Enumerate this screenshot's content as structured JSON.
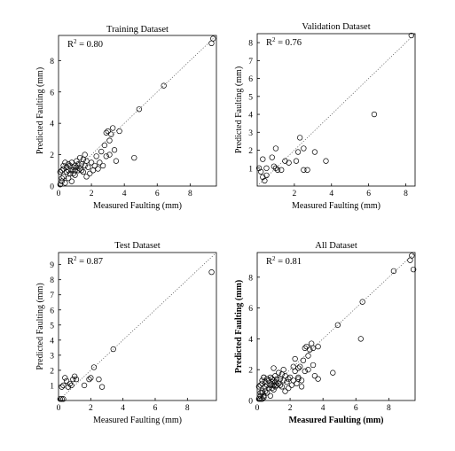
{
  "chart_data": [
    {
      "type": "scatter",
      "title": "Training Dataset",
      "xlabel": "Measured Faulting (mm)",
      "ylabel": "Predicted Faulting (mm)",
      "annotation": {
        "prefix": "R",
        "sup": "2",
        "value": " = 0.80"
      },
      "xlim": [
        0,
        9.6
      ],
      "ylim": [
        0,
        9.6
      ],
      "xticks": [
        0,
        2,
        4,
        6,
        8
      ],
      "yticks": [
        0,
        2,
        4,
        6,
        8
      ],
      "reference_line": "y = x (dotted)",
      "points": [
        [
          0.1,
          0.1
        ],
        [
          0.2,
          0.3
        ],
        [
          0.3,
          0.6
        ],
        [
          0.2,
          1.0
        ],
        [
          0.3,
          1.3
        ],
        [
          0.4,
          1.5
        ],
        [
          0.5,
          0.9
        ],
        [
          0.5,
          1.2
        ],
        [
          0.6,
          0.5
        ],
        [
          0.6,
          1.0
        ],
        [
          0.7,
          1.3
        ],
        [
          0.7,
          0.8
        ],
        [
          0.8,
          1.0
        ],
        [
          0.8,
          1.5
        ],
        [
          0.9,
          1.2
        ],
        [
          1.0,
          1.0
        ],
        [
          1.0,
          0.7
        ],
        [
          1.1,
          1.6
        ],
        [
          1.1,
          1.2
        ],
        [
          1.2,
          1.0
        ],
        [
          1.2,
          1.4
        ],
        [
          1.3,
          1.8
        ],
        [
          1.3,
          1.1
        ],
        [
          1.4,
          1.4
        ],
        [
          1.5,
          1.7
        ],
        [
          1.5,
          0.9
        ],
        [
          1.6,
          1.3
        ],
        [
          1.7,
          1.6
        ],
        [
          1.8,
          1.2
        ],
        [
          1.9,
          0.8
        ],
        [
          2.0,
          1.5
        ],
        [
          2.1,
          1.0
        ],
        [
          2.2,
          1.3
        ],
        [
          2.3,
          1.9
        ],
        [
          2.5,
          1.5
        ],
        [
          2.6,
          2.2
        ],
        [
          2.7,
          1.3
        ],
        [
          2.8,
          2.6
        ],
        [
          2.9,
          3.4
        ],
        [
          3.0,
          3.5
        ],
        [
          3.1,
          2.9
        ],
        [
          3.2,
          3.3
        ],
        [
          3.3,
          3.7
        ],
        [
          3.4,
          2.3
        ],
        [
          3.5,
          1.6
        ],
        [
          3.7,
          3.5
        ],
        [
          3.1,
          2.0
        ],
        [
          2.9,
          1.9
        ],
        [
          4.6,
          1.8
        ],
        [
          4.9,
          4.9
        ],
        [
          6.4,
          6.4
        ],
        [
          9.3,
          9.1
        ],
        [
          9.4,
          9.4
        ],
        [
          0.1,
          0.9
        ],
        [
          0.2,
          0.5
        ],
        [
          0.4,
          0.2
        ],
        [
          0.9,
          0.8
        ],
        [
          1.4,
          1.0
        ],
        [
          1.7,
          0.6
        ],
        [
          0.3,
          1.1
        ],
        [
          0.6,
          1.4
        ],
        [
          1.0,
          1.3
        ],
        [
          1.6,
          2.0
        ],
        [
          2.4,
          1.1
        ],
        [
          0.8,
          0.3
        ]
      ]
    },
    {
      "type": "scatter",
      "title": "Validation Dataset",
      "xlabel": "Measured Faulting (mm)",
      "ylabel": "Predicted Faulting (mm)",
      "annotation": {
        "prefix": "R",
        "sup": "2",
        "value": " = 0.76"
      },
      "xlim": [
        0,
        8.5
      ],
      "ylim": [
        0,
        8.5
      ],
      "xticks": [
        2,
        4,
        6,
        8
      ],
      "yticks": [
        1,
        2,
        3,
        4,
        5,
        6,
        7,
        8
      ],
      "reference_line": "y = x (dotted)",
      "points": [
        [
          0.1,
          1.0
        ],
        [
          0.2,
          0.8
        ],
        [
          0.3,
          0.5
        ],
        [
          0.3,
          1.5
        ],
        [
          0.4,
          0.3
        ],
        [
          0.5,
          0.6
        ],
        [
          0.5,
          1.0
        ],
        [
          0.8,
          1.6
        ],
        [
          0.9,
          1.1
        ],
        [
          1.0,
          1.0
        ],
        [
          1.0,
          2.1
        ],
        [
          1.1,
          0.9
        ],
        [
          1.3,
          0.9
        ],
        [
          1.5,
          1.4
        ],
        [
          1.7,
          1.3
        ],
        [
          2.1,
          1.4
        ],
        [
          2.2,
          1.9
        ],
        [
          2.3,
          2.7
        ],
        [
          2.5,
          2.1
        ],
        [
          2.5,
          0.9
        ],
        [
          2.7,
          0.9
        ],
        [
          3.1,
          1.9
        ],
        [
          3.7,
          1.4
        ],
        [
          6.3,
          4.0
        ],
        [
          8.3,
          8.4
        ]
      ]
    },
    {
      "type": "scatter",
      "title": "Test Dataset",
      "xlabel": "Measured Faulting (mm)",
      "ylabel": "Predicted Faulting (mm)",
      "annotation": {
        "prefix": "R",
        "sup": "2",
        "value": " = 0.87"
      },
      "xlim": [
        0,
        9.8
      ],
      "ylim": [
        0,
        9.8
      ],
      "xticks": [
        0,
        2,
        4,
        6,
        8
      ],
      "yticks": [
        1,
        2,
        3,
        4,
        5,
        6,
        7,
        8,
        9
      ],
      "reference_line": "y = x (dotted)",
      "points": [
        [
          0.1,
          0.1
        ],
        [
          0.2,
          0.1
        ],
        [
          0.3,
          0.1
        ],
        [
          0.2,
          0.9
        ],
        [
          0.3,
          1.0
        ],
        [
          0.4,
          1.5
        ],
        [
          0.5,
          1.3
        ],
        [
          0.6,
          0.9
        ],
        [
          0.7,
          1.1
        ],
        [
          0.8,
          1.0
        ],
        [
          0.9,
          1.4
        ],
        [
          1.0,
          1.6
        ],
        [
          1.1,
          1.4
        ],
        [
          1.6,
          1.0
        ],
        [
          1.9,
          1.4
        ],
        [
          2.0,
          1.5
        ],
        [
          2.2,
          2.2
        ],
        [
          2.5,
          1.4
        ],
        [
          2.7,
          0.9
        ],
        [
          3.4,
          3.4
        ],
        [
          9.5,
          8.5
        ]
      ]
    },
    {
      "type": "scatter",
      "title": "All Dataset",
      "xlabel": "Measured Faulting (mm)",
      "ylabel": "Predicted Faulting (mm)",
      "annotation": {
        "prefix": "R",
        "sup": "2",
        "value": " = 0.81"
      },
      "xlim": [
        0,
        9.6
      ],
      "ylim": [
        0,
        9.6
      ],
      "xticks": [
        0,
        2,
        4,
        6,
        8
      ],
      "yticks": [
        0,
        2,
        4,
        6,
        8
      ],
      "reference_line": "y = x (dotted)",
      "points": [
        [
          0.1,
          0.1
        ],
        [
          0.2,
          0.3
        ],
        [
          0.3,
          0.6
        ],
        [
          0.2,
          1.0
        ],
        [
          0.3,
          1.3
        ],
        [
          0.4,
          1.5
        ],
        [
          0.5,
          0.9
        ],
        [
          0.5,
          1.2
        ],
        [
          0.6,
          0.5
        ],
        [
          0.6,
          1.0
        ],
        [
          0.7,
          1.3
        ],
        [
          0.7,
          0.8
        ],
        [
          0.8,
          1.0
        ],
        [
          0.8,
          1.5
        ],
        [
          0.9,
          1.2
        ],
        [
          1.0,
          1.0
        ],
        [
          1.0,
          0.7
        ],
        [
          1.1,
          1.6
        ],
        [
          1.1,
          1.2
        ],
        [
          1.2,
          1.0
        ],
        [
          1.2,
          1.4
        ],
        [
          1.3,
          1.8
        ],
        [
          1.3,
          1.1
        ],
        [
          1.4,
          1.4
        ],
        [
          1.5,
          1.7
        ],
        [
          1.5,
          0.9
        ],
        [
          1.6,
          1.3
        ],
        [
          1.7,
          1.6
        ],
        [
          1.8,
          1.2
        ],
        [
          1.9,
          0.8
        ],
        [
          2.0,
          1.5
        ],
        [
          2.1,
          1.0
        ],
        [
          2.2,
          1.3
        ],
        [
          2.3,
          1.9
        ],
        [
          2.5,
          1.5
        ],
        [
          2.6,
          2.2
        ],
        [
          2.7,
          1.3
        ],
        [
          2.8,
          2.6
        ],
        [
          2.9,
          3.4
        ],
        [
          3.0,
          3.5
        ],
        [
          3.1,
          2.9
        ],
        [
          3.2,
          3.3
        ],
        [
          3.3,
          3.7
        ],
        [
          3.4,
          2.3
        ],
        [
          3.5,
          1.6
        ],
        [
          3.7,
          3.5
        ],
        [
          3.1,
          2.0
        ],
        [
          2.9,
          1.9
        ],
        [
          4.6,
          1.8
        ],
        [
          4.9,
          4.9
        ],
        [
          6.4,
          6.4
        ],
        [
          9.3,
          9.1
        ],
        [
          9.4,
          9.4
        ],
        [
          0.1,
          0.9
        ],
        [
          0.2,
          0.5
        ],
        [
          0.4,
          0.2
        ],
        [
          0.9,
          0.8
        ],
        [
          1.4,
          1.0
        ],
        [
          1.7,
          0.6
        ],
        [
          0.3,
          1.1
        ],
        [
          0.6,
          1.4
        ],
        [
          1.0,
          1.3
        ],
        [
          1.6,
          2.0
        ],
        [
          2.4,
          1.1
        ],
        [
          0.8,
          0.3
        ],
        [
          0.3,
          0.5
        ],
        [
          0.4,
          0.3
        ],
        [
          0.5,
          0.6
        ],
        [
          1.0,
          2.1
        ],
        [
          1.1,
          0.9
        ],
        [
          2.3,
          2.7
        ],
        [
          2.5,
          2.1
        ],
        [
          2.7,
          0.9
        ],
        [
          3.7,
          1.4
        ],
        [
          6.3,
          4.0
        ],
        [
          8.3,
          8.4
        ],
        [
          0.2,
          0.1
        ],
        [
          0.3,
          0.1
        ],
        [
          0.4,
          1.5
        ],
        [
          0.9,
          1.4
        ],
        [
          1.9,
          1.4
        ],
        [
          2.2,
          2.2
        ],
        [
          2.5,
          1.4
        ],
        [
          3.4,
          3.4
        ],
        [
          9.5,
          8.5
        ]
      ]
    }
  ]
}
